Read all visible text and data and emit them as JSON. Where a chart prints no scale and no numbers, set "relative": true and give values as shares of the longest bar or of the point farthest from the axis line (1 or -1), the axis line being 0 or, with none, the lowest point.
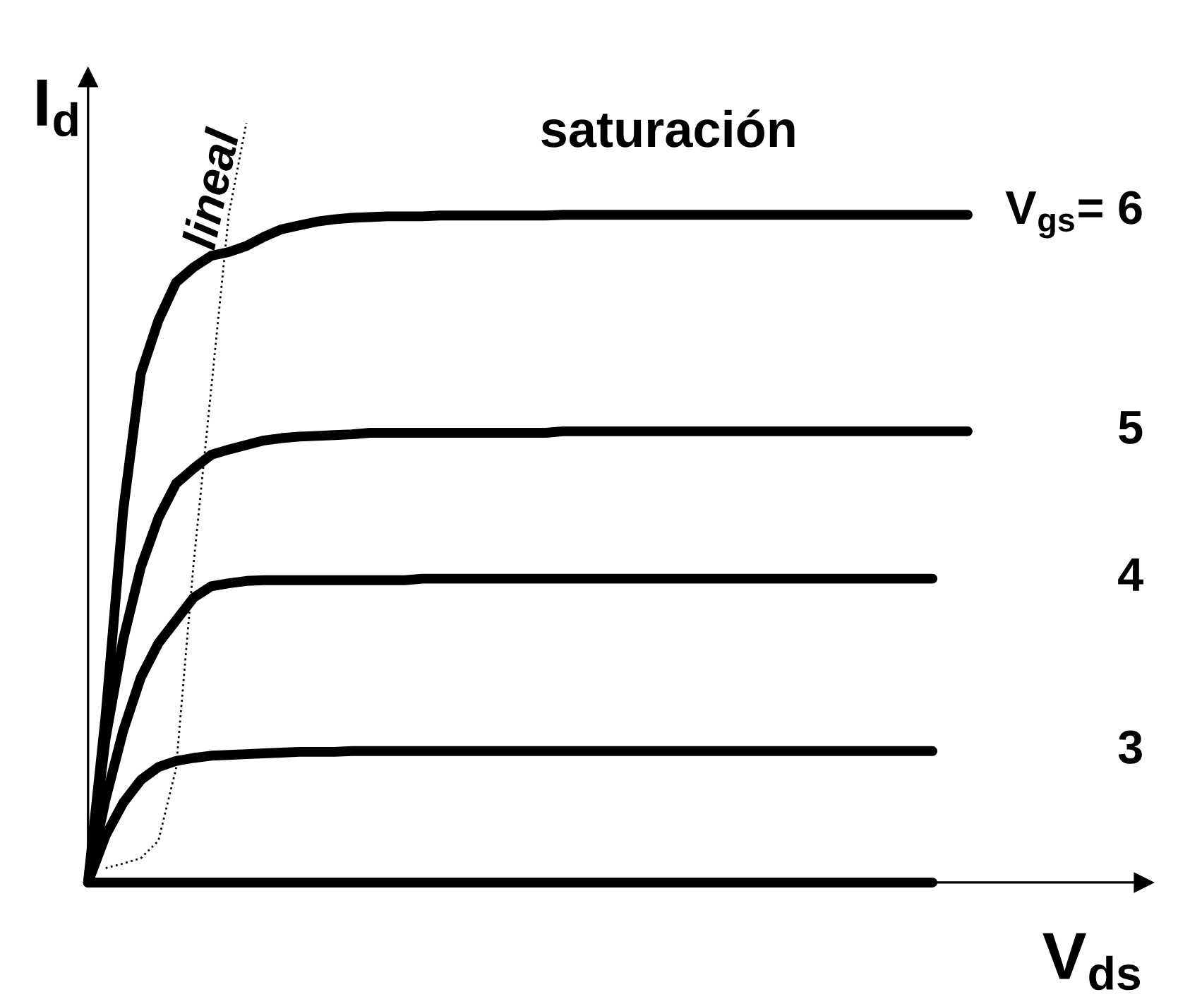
{
  "chart_data": {
    "type": "line",
    "relative": true,
    "xlabel": "V$_{ds}$",
    "ylabel": "I$_{d}$",
    "annotations": [
      "saturación",
      "lineal"
    ],
    "marker": "none",
    "categories": [
      null,
      null,
      null,
      null,
      null,
      null,
      null,
      null,
      null,
      null,
      null,
      null,
      null,
      null,
      null,
      null,
      null,
      null,
      null,
      null,
      null,
      null,
      null,
      null,
      null,
      null,
      null,
      null,
      null,
      null,
      null,
      null,
      null,
      null,
      null,
      null,
      null,
      null,
      null,
      null,
      null,
      null,
      null,
      null,
      null,
      null,
      null,
      null,
      null,
      null,
      null
    ],
    "series": [
      {
        "name": "V$_{gs}$= 6",
        "color": "#000000",
        "line_style": "solid",
        "values": [
          0,
          0.22,
          0.49,
          0.67,
          0.74,
          0.79,
          0.81,
          0.825,
          0.83,
          0.838,
          0.85,
          0.86,
          0.865,
          0.87,
          0.873,
          0.875,
          0.876,
          0.877,
          0.877,
          0.877,
          0.878,
          0.878,
          0.878,
          0.878,
          0.878,
          0.878,
          0.878,
          0.879,
          0.879,
          0.879,
          0.879,
          0.879,
          0.879,
          0.879,
          0.879,
          0.879,
          0.879,
          0.879,
          0.879,
          0.879,
          0.879,
          0.879,
          0.879,
          0.879,
          0.879,
          0.879,
          0.879,
          0.879,
          0.879,
          0.879,
          0.879
        ]
      },
      {
        "name": "5",
        "color": "#000000",
        "line_style": "solid",
        "values": [
          0,
          0.19,
          0.32,
          0.415,
          0.48,
          0.525,
          0.545,
          0.563,
          0.57,
          0.576,
          0.582,
          0.585,
          0.587,
          0.588,
          0.589,
          0.59,
          0.592,
          0.592,
          0.592,
          0.592,
          0.592,
          0.592,
          0.592,
          0.592,
          0.592,
          0.592,
          0.592,
          0.594,
          0.594,
          0.594,
          0.594,
          0.594,
          0.594,
          0.594,
          0.594,
          0.594,
          0.594,
          0.594,
          0.594,
          0.594,
          0.594,
          0.594,
          0.594,
          0.594,
          0.594,
          0.594,
          0.594,
          0.594,
          0.594,
          0.594,
          0.594
        ]
      },
      {
        "name": "4",
        "color": "#000000",
        "line_style": "solid",
        "values": [
          0,
          0.11,
          0.2,
          0.27,
          0.315,
          0.345,
          0.375,
          0.39,
          0.394,
          0.397,
          0.398,
          0.398,
          0.398,
          0.398,
          0.398,
          0.398,
          0.398,
          0.398,
          0.398,
          0.4,
          0.4,
          0.4,
          0.4,
          0.4,
          0.4,
          0.4,
          0.4,
          0.4,
          0.4,
          0.4,
          0.4,
          0.4,
          0.4,
          0.4,
          0.4,
          0.4,
          0.4,
          0.4,
          0.4,
          0.4,
          0.4,
          0.4,
          0.4,
          0.4,
          0.4,
          0.4,
          0.4,
          0.4,
          0.4,
          null,
          null
        ]
      },
      {
        "name": "3",
        "color": "#000000",
        "line_style": "solid",
        "values": [
          0,
          0.062,
          0.105,
          0.135,
          0.152,
          0.16,
          0.164,
          0.167,
          0.168,
          0.169,
          0.17,
          0.171,
          0.172,
          0.172,
          0.172,
          0.173,
          0.173,
          0.173,
          0.173,
          0.173,
          0.173,
          0.173,
          0.173,
          0.173,
          0.173,
          0.173,
          0.173,
          0.173,
          0.173,
          0.173,
          0.173,
          0.173,
          0.173,
          0.173,
          0.173,
          0.173,
          0.173,
          0.173,
          0.173,
          0.173,
          0.173,
          0.173,
          0.173,
          0.173,
          0.173,
          0.173,
          0.173,
          0.173,
          0.173,
          null,
          null
        ]
      },
      {
        "color": "#000000",
        "line_style": "solid",
        "values": [
          0,
          0,
          0,
          0,
          0,
          0,
          0,
          0,
          0,
          0,
          0,
          0,
          0,
          0,
          0,
          0,
          0,
          0,
          0,
          0,
          0,
          0,
          0,
          0,
          0,
          0,
          0,
          0,
          0,
          0,
          0,
          0,
          0,
          0,
          0,
          0,
          0,
          0,
          0,
          0,
          0,
          0,
          0,
          0,
          0,
          0,
          0,
          0,
          0,
          null,
          null
        ]
      },
      {
        "color": "#000000",
        "line_style": "dotted",
        "values": [
          null,
          0.019,
          0.025,
          0.032,
          0.055,
          0.15,
          0.42,
          0.65,
          0.88,
          1.0,
          null,
          null,
          null,
          null,
          null,
          null,
          null,
          null,
          null,
          null,
          null,
          null,
          null,
          null,
          null,
          null,
          null,
          null,
          null,
          null,
          null,
          null,
          null,
          null,
          null,
          null,
          null,
          null,
          null,
          null,
          null,
          null,
          null,
          null,
          null,
          null,
          null,
          null,
          null,
          null,
          null
        ]
      }
    ]
  }
}
